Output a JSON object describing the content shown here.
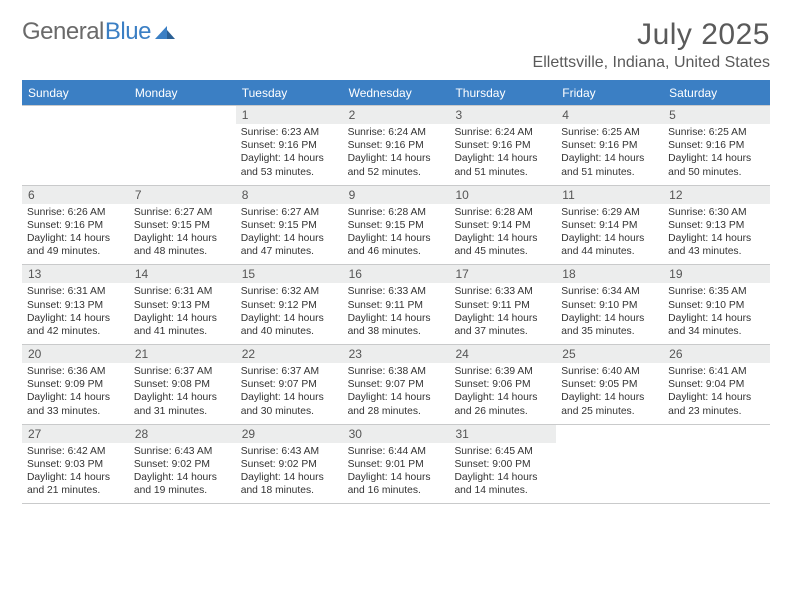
{
  "brand": {
    "part1": "General",
    "part2": "Blue"
  },
  "title": "July 2025",
  "location": "Ellettsville, Indiana, United States",
  "colors": {
    "header_bg": "#3b7fc4",
    "daynum_bg": "#eceded",
    "border": "#c9cacb",
    "text_gray": "#5a5a5a",
    "body_text": "#333333",
    "white": "#ffffff"
  },
  "fonts": {
    "title_size": 30,
    "location_size": 16,
    "weekday_size": 12,
    "daynum_size": 12,
    "body_size": 10.3
  },
  "weekdays": [
    "Sunday",
    "Monday",
    "Tuesday",
    "Wednesday",
    "Thursday",
    "Friday",
    "Saturday"
  ],
  "weeks": [
    [
      {
        "n": "",
        "body": ""
      },
      {
        "n": "",
        "body": ""
      },
      {
        "n": "1",
        "body": "Sunrise: 6:23 AM\nSunset: 9:16 PM\nDaylight: 14 hours and 53 minutes."
      },
      {
        "n": "2",
        "body": "Sunrise: 6:24 AM\nSunset: 9:16 PM\nDaylight: 14 hours and 52 minutes."
      },
      {
        "n": "3",
        "body": "Sunrise: 6:24 AM\nSunset: 9:16 PM\nDaylight: 14 hours and 51 minutes."
      },
      {
        "n": "4",
        "body": "Sunrise: 6:25 AM\nSunset: 9:16 PM\nDaylight: 14 hours and 51 minutes."
      },
      {
        "n": "5",
        "body": "Sunrise: 6:25 AM\nSunset: 9:16 PM\nDaylight: 14 hours and 50 minutes."
      }
    ],
    [
      {
        "n": "6",
        "body": "Sunrise: 6:26 AM\nSunset: 9:16 PM\nDaylight: 14 hours and 49 minutes."
      },
      {
        "n": "7",
        "body": "Sunrise: 6:27 AM\nSunset: 9:15 PM\nDaylight: 14 hours and 48 minutes."
      },
      {
        "n": "8",
        "body": "Sunrise: 6:27 AM\nSunset: 9:15 PM\nDaylight: 14 hours and 47 minutes."
      },
      {
        "n": "9",
        "body": "Sunrise: 6:28 AM\nSunset: 9:15 PM\nDaylight: 14 hours and 46 minutes."
      },
      {
        "n": "10",
        "body": "Sunrise: 6:28 AM\nSunset: 9:14 PM\nDaylight: 14 hours and 45 minutes."
      },
      {
        "n": "11",
        "body": "Sunrise: 6:29 AM\nSunset: 9:14 PM\nDaylight: 14 hours and 44 minutes."
      },
      {
        "n": "12",
        "body": "Sunrise: 6:30 AM\nSunset: 9:13 PM\nDaylight: 14 hours and 43 minutes."
      }
    ],
    [
      {
        "n": "13",
        "body": "Sunrise: 6:31 AM\nSunset: 9:13 PM\nDaylight: 14 hours and 42 minutes."
      },
      {
        "n": "14",
        "body": "Sunrise: 6:31 AM\nSunset: 9:13 PM\nDaylight: 14 hours and 41 minutes."
      },
      {
        "n": "15",
        "body": "Sunrise: 6:32 AM\nSunset: 9:12 PM\nDaylight: 14 hours and 40 minutes."
      },
      {
        "n": "16",
        "body": "Sunrise: 6:33 AM\nSunset: 9:11 PM\nDaylight: 14 hours and 38 minutes."
      },
      {
        "n": "17",
        "body": "Sunrise: 6:33 AM\nSunset: 9:11 PM\nDaylight: 14 hours and 37 minutes."
      },
      {
        "n": "18",
        "body": "Sunrise: 6:34 AM\nSunset: 9:10 PM\nDaylight: 14 hours and 35 minutes."
      },
      {
        "n": "19",
        "body": "Sunrise: 6:35 AM\nSunset: 9:10 PM\nDaylight: 14 hours and 34 minutes."
      }
    ],
    [
      {
        "n": "20",
        "body": "Sunrise: 6:36 AM\nSunset: 9:09 PM\nDaylight: 14 hours and 33 minutes."
      },
      {
        "n": "21",
        "body": "Sunrise: 6:37 AM\nSunset: 9:08 PM\nDaylight: 14 hours and 31 minutes."
      },
      {
        "n": "22",
        "body": "Sunrise: 6:37 AM\nSunset: 9:07 PM\nDaylight: 14 hours and 30 minutes."
      },
      {
        "n": "23",
        "body": "Sunrise: 6:38 AM\nSunset: 9:07 PM\nDaylight: 14 hours and 28 minutes."
      },
      {
        "n": "24",
        "body": "Sunrise: 6:39 AM\nSunset: 9:06 PM\nDaylight: 14 hours and 26 minutes."
      },
      {
        "n": "25",
        "body": "Sunrise: 6:40 AM\nSunset: 9:05 PM\nDaylight: 14 hours and 25 minutes."
      },
      {
        "n": "26",
        "body": "Sunrise: 6:41 AM\nSunset: 9:04 PM\nDaylight: 14 hours and 23 minutes."
      }
    ],
    [
      {
        "n": "27",
        "body": "Sunrise: 6:42 AM\nSunset: 9:03 PM\nDaylight: 14 hours and 21 minutes."
      },
      {
        "n": "28",
        "body": "Sunrise: 6:43 AM\nSunset: 9:02 PM\nDaylight: 14 hours and 19 minutes."
      },
      {
        "n": "29",
        "body": "Sunrise: 6:43 AM\nSunset: 9:02 PM\nDaylight: 14 hours and 18 minutes."
      },
      {
        "n": "30",
        "body": "Sunrise: 6:44 AM\nSunset: 9:01 PM\nDaylight: 14 hours and 16 minutes."
      },
      {
        "n": "31",
        "body": "Sunrise: 6:45 AM\nSunset: 9:00 PM\nDaylight: 14 hours and 14 minutes."
      },
      {
        "n": "",
        "body": ""
      },
      {
        "n": "",
        "body": ""
      }
    ]
  ]
}
